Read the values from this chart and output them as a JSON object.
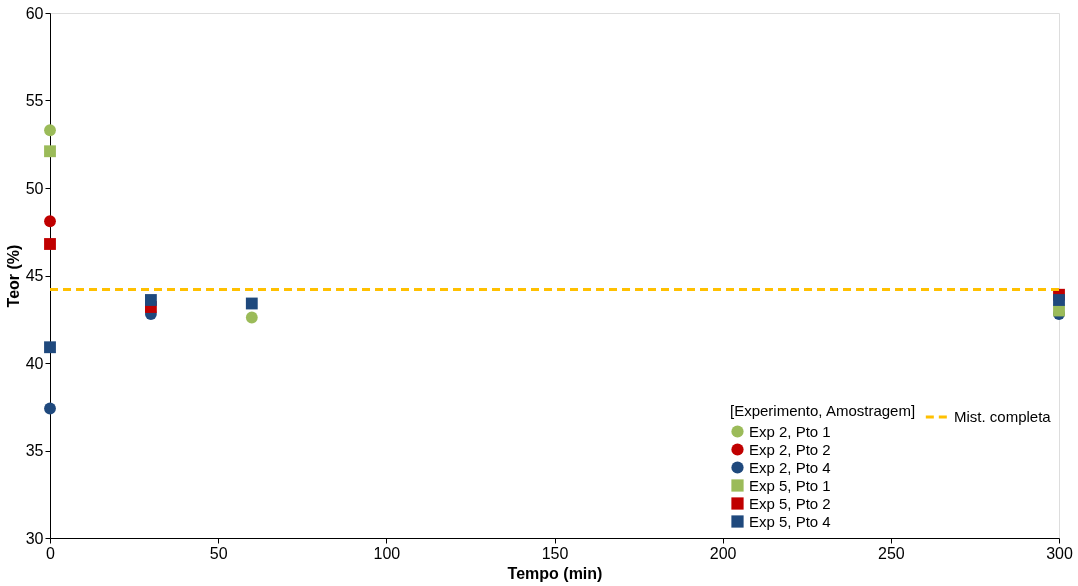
{
  "chart_data": {
    "type": "scatter",
    "xlabel": "Tempo (min)",
    "ylabel": "Teor (%)",
    "legend_title": "[Experimento, Amostragem]",
    "x": [
      0,
      30,
      60,
      300
    ],
    "series": [
      {
        "name": "Exp 2, Pto 1",
        "color": "#9bbb59",
        "marker": "circle",
        "values": [
          53.3,
          null,
          42.6,
          null
        ]
      },
      {
        "name": "Exp 2, Pto 2",
        "color": "#c00000",
        "marker": "circle",
        "values": [
          48.1,
          null,
          null,
          null
        ]
      },
      {
        "name": "Exp 2, Pto 4",
        "color": "#1f497d",
        "marker": "circle",
        "values": [
          37.4,
          42.8,
          null,
          42.8
        ]
      },
      {
        "name": "Exp 5, Pto 1",
        "color": "#9bbb59",
        "marker": "square",
        "values": [
          52.1,
          null,
          null,
          43.0
        ]
      },
      {
        "name": "Exp 5, Pto 2",
        "color": "#c00000",
        "marker": "square",
        "values": [
          46.8,
          43.2,
          null,
          43.9
        ]
      },
      {
        "name": "Exp 5, Pto 4",
        "color": "#1f497d",
        "marker": "square",
        "values": [
          40.9,
          43.6,
          43.4,
          43.6
        ]
      }
    ],
    "ref_lines": [
      {
        "axis": "y",
        "value": 44.2,
        "label": "Mist. completa",
        "color": "#ffc000",
        "line_style": "dashed"
      }
    ],
    "xlim": [
      0,
      300
    ],
    "xticks": [
      0,
      50,
      100,
      150,
      200,
      250,
      300
    ],
    "ylim": [
      30,
      60
    ],
    "yticks": [
      30,
      35,
      40,
      45,
      50,
      55,
      60
    ],
    "grid": false,
    "legend": "bottom right"
  }
}
